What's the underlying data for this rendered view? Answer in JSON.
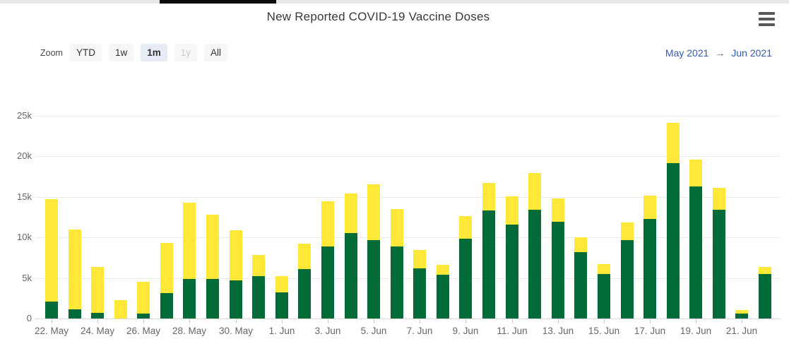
{
  "window": {
    "scroll_strip": {
      "track_color": "#e8e8eb",
      "thumb_color": "#0a0a0a"
    }
  },
  "header": {
    "title": "New Reported COVID-19 Vaccine Doses",
    "menu_icon": "hamburger-icon"
  },
  "toolbar": {
    "zoom_label": "Zoom",
    "buttons": [
      {
        "label": "YTD",
        "state": "default"
      },
      {
        "label": "1w",
        "state": "default"
      },
      {
        "label": "1m",
        "state": "selected"
      },
      {
        "label": "1y",
        "state": "disabled"
      },
      {
        "label": "All",
        "state": "default"
      }
    ],
    "range_from": "May 2021",
    "range_arrow": "→",
    "range_to": "Jun 2021"
  },
  "chart_data": {
    "type": "bar",
    "stacked": true,
    "title": "New Reported COVID-19 Vaccine Doses",
    "categories": [
      "22 May",
      "23 May",
      "24 May",
      "25 May",
      "26 May",
      "27 May",
      "28 May",
      "29 May",
      "30 May",
      "31 May",
      "1 Jun",
      "2 Jun",
      "3 Jun",
      "4 Jun",
      "5 Jun",
      "6 Jun",
      "7 Jun",
      "8 Jun",
      "9 Jun",
      "10 Jun",
      "11 Jun",
      "12 Jun",
      "13 Jun",
      "14 Jun",
      "15 Jun",
      "16 Jun",
      "17 Jun",
      "18 Jun",
      "19 Jun",
      "20 Jun",
      "21 Jun",
      "22 Jun"
    ],
    "series": [
      {
        "name": "green",
        "color": "#036b38",
        "values": [
          2100,
          1100,
          700,
          0,
          600,
          3100,
          4900,
          4900,
          4700,
          5200,
          3200,
          6100,
          8900,
          10500,
          9700,
          8900,
          6200,
          5400,
          9800,
          13300,
          11600,
          13400,
          11900,
          8200,
          5500,
          9700,
          12300,
          19200,
          16300,
          13400,
          600,
          5500
        ]
      },
      {
        "name": "yellow",
        "color": "#ffe838",
        "values": [
          12600,
          9800,
          5700,
          2300,
          3900,
          6200,
          9400,
          7900,
          6200,
          2600,
          2000,
          3100,
          5600,
          4900,
          6900,
          4600,
          2300,
          1200,
          2800,
          3400,
          3500,
          4500,
          2900,
          1800,
          1200,
          2200,
          2900,
          5000,
          3300,
          2700,
          400,
          900
        ]
      }
    ],
    "ylim": [
      0,
      25000
    ],
    "ytick_values": [
      0,
      5000,
      10000,
      15000,
      20000,
      25000
    ],
    "ytick_labels": [
      "0",
      "5k",
      "10k",
      "15k",
      "20k",
      "25k"
    ],
    "xtick_indices": [
      0,
      2,
      4,
      6,
      8,
      10,
      12,
      14,
      16,
      18,
      20,
      22,
      24,
      26,
      28,
      30
    ],
    "xtick_labels": [
      "22. May",
      "24. May",
      "26. May",
      "28. May",
      "30. May",
      "1. Jun",
      "3. Jun",
      "5. Jun",
      "7. Jun",
      "9. Jun",
      "11. Jun",
      "13. Jun",
      "15. Jun",
      "17. Jun",
      "19. Jun",
      "21. Jun"
    ],
    "grid": "horizontal",
    "legend": "none"
  }
}
